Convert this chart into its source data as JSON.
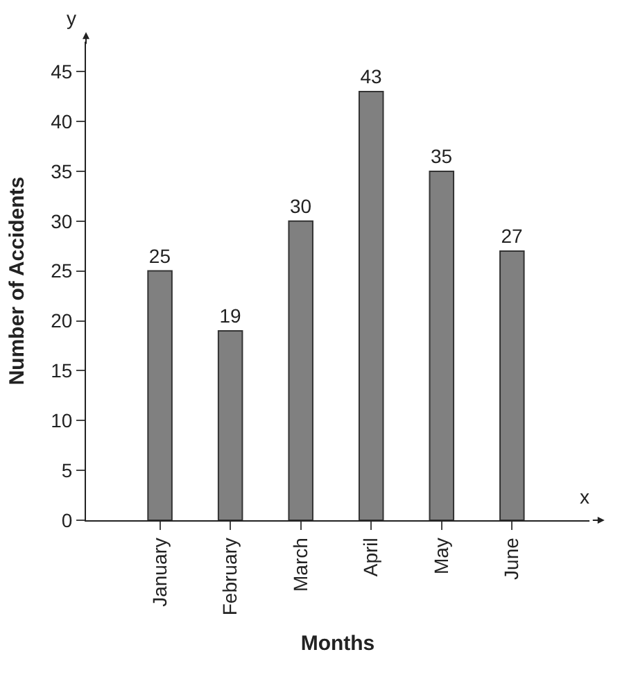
{
  "chart_data": {
    "type": "bar",
    "xlabel": "Months",
    "ylabel": "Number of Accidents",
    "categories": [
      "January",
      "February",
      "March",
      "April",
      "May",
      "June"
    ],
    "values": [
      25,
      19,
      30,
      43,
      35,
      27
    ],
    "color": "#808080",
    "ylim": [
      0,
      48
    ],
    "yticks": [
      0,
      5,
      10,
      15,
      20,
      25,
      30,
      35,
      40,
      45
    ],
    "data_labels": true,
    "annotations": [
      "y",
      "x"
    ]
  }
}
